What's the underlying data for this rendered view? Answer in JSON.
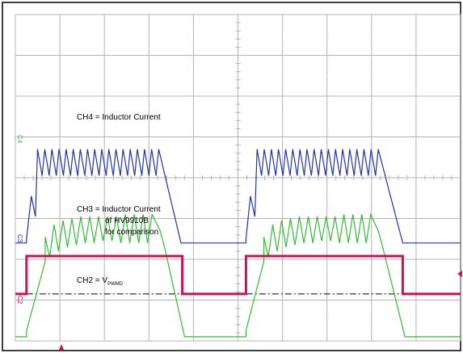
{
  "chart_data": {
    "type": "line",
    "title": "",
    "xlabel": "",
    "ylabel": "",
    "grid": true,
    "grid_divisions": {
      "x": 10,
      "y": 8
    },
    "annotations": {
      "ch4": "CH4 = Inductor Current",
      "ch3_line1": "CH3 = Inductor Current",
      "ch3_line2": "of HV9910B",
      "ch3_line3": "for comparison",
      "ch2_prefix": "CH2 = V",
      "ch2_subscript": "PWMD"
    },
    "channel_markers": {
      "ch4": "C4",
      "ch3": "C3",
      "ch2": "C2"
    },
    "colors": {
      "ch4": "#33bb33",
      "ch3": "#2233aa",
      "ch2": "#cc1155",
      "grid": "#b4b4b4",
      "frame": "#000000",
      "trigger": "#cc1155"
    },
    "series": [
      {
        "channel": "CH4",
        "unit": "div",
        "points": [
          [
            0.0,
            -3.9
          ],
          [
            0.05,
            -3.9
          ],
          [
            0.25,
            -3.9
          ],
          [
            0.25,
            -3.75
          ],
          [
            0.67,
            -2.05
          ],
          [
            0.67,
            -1.45
          ],
          [
            0.77,
            -1.95
          ],
          [
            0.87,
            -1.15
          ],
          [
            0.97,
            -1.8
          ],
          [
            1.07,
            -1.05
          ],
          [
            1.17,
            -1.7
          ],
          [
            1.27,
            -1.0
          ],
          [
            1.37,
            -1.65
          ],
          [
            1.47,
            -0.95
          ],
          [
            1.57,
            -1.6
          ],
          [
            1.67,
            -0.95
          ],
          [
            1.77,
            -1.6
          ],
          [
            1.87,
            -0.95
          ],
          [
            1.97,
            -1.55
          ],
          [
            2.07,
            -0.95
          ],
          [
            2.17,
            -1.55
          ],
          [
            2.27,
            -0.95
          ],
          [
            2.37,
            -1.6
          ],
          [
            2.47,
            -0.9
          ],
          [
            2.57,
            -1.6
          ],
          [
            2.67,
            -0.9
          ],
          [
            2.77,
            -1.6
          ],
          [
            2.87,
            -0.9
          ],
          [
            2.97,
            -1.6
          ],
          [
            3.07,
            -0.9
          ],
          [
            3.25,
            -1.3
          ],
          [
            3.35,
            -1.7
          ],
          [
            3.8,
            -3.9
          ],
          [
            5.18,
            -3.9
          ],
          [
            5.18,
            -3.75
          ],
          [
            5.58,
            -2.05
          ],
          [
            5.58,
            -1.45
          ],
          [
            5.68,
            -1.95
          ],
          [
            5.78,
            -1.15
          ],
          [
            5.88,
            -1.8
          ],
          [
            5.98,
            -1.05
          ],
          [
            6.08,
            -1.7
          ],
          [
            6.18,
            -1.0
          ],
          [
            6.28,
            -1.65
          ],
          [
            6.38,
            -0.95
          ],
          [
            6.48,
            -1.6
          ],
          [
            6.58,
            -0.95
          ],
          [
            6.68,
            -1.6
          ],
          [
            6.78,
            -0.95
          ],
          [
            6.88,
            -1.55
          ],
          [
            6.98,
            -0.95
          ],
          [
            7.08,
            -1.55
          ],
          [
            7.18,
            -0.95
          ],
          [
            7.28,
            -1.6
          ],
          [
            7.38,
            -0.9
          ],
          [
            7.48,
            -1.6
          ],
          [
            7.58,
            -0.9
          ],
          [
            7.68,
            -1.6
          ],
          [
            7.78,
            -0.9
          ],
          [
            7.88,
            -1.6
          ],
          [
            7.98,
            -0.9
          ],
          [
            8.15,
            -1.3
          ],
          [
            8.25,
            -1.7
          ],
          [
            8.75,
            -3.9
          ],
          [
            10.0,
            -3.9
          ]
        ]
      },
      {
        "channel": "CH3",
        "unit": "div",
        "points": [
          [
            0.0,
            -1.6
          ],
          [
            0.1,
            -1.6
          ],
          [
            0.25,
            -1.6
          ],
          [
            0.25,
            -1.5
          ],
          [
            0.36,
            -0.45
          ],
          [
            0.45,
            -0.95
          ],
          [
            0.5,
            0.7
          ],
          [
            0.6,
            0.05
          ],
          [
            0.66,
            0.7
          ],
          [
            0.76,
            0.05
          ],
          [
            0.82,
            0.7
          ],
          [
            0.92,
            0.05
          ],
          [
            0.98,
            0.7
          ],
          [
            1.08,
            0.05
          ],
          [
            1.14,
            0.7
          ],
          [
            1.24,
            0.05
          ],
          [
            1.3,
            0.7
          ],
          [
            1.4,
            0.05
          ],
          [
            1.46,
            0.7
          ],
          [
            1.56,
            0.05
          ],
          [
            1.62,
            0.7
          ],
          [
            1.72,
            0.05
          ],
          [
            1.78,
            0.7
          ],
          [
            1.88,
            0.05
          ],
          [
            1.94,
            0.7
          ],
          [
            2.04,
            0.05
          ],
          [
            2.1,
            0.7
          ],
          [
            2.2,
            0.05
          ],
          [
            2.26,
            0.7
          ],
          [
            2.36,
            0.05
          ],
          [
            2.42,
            0.7
          ],
          [
            2.52,
            0.05
          ],
          [
            2.58,
            0.7
          ],
          [
            2.68,
            0.05
          ],
          [
            2.74,
            0.7
          ],
          [
            2.84,
            0.05
          ],
          [
            2.9,
            0.7
          ],
          [
            3.0,
            0.05
          ],
          [
            3.06,
            0.7
          ],
          [
            3.16,
            0.05
          ],
          [
            3.22,
            0.7
          ],
          [
            3.72,
            -1.6
          ],
          [
            5.18,
            -1.6
          ],
          [
            5.18,
            -1.5
          ],
          [
            5.28,
            -0.45
          ],
          [
            5.38,
            -0.95
          ],
          [
            5.43,
            0.7
          ],
          [
            5.53,
            0.05
          ],
          [
            5.59,
            0.7
          ],
          [
            5.69,
            0.05
          ],
          [
            5.75,
            0.7
          ],
          [
            5.85,
            0.05
          ],
          [
            5.91,
            0.7
          ],
          [
            6.01,
            0.05
          ],
          [
            6.07,
            0.7
          ],
          [
            6.17,
            0.05
          ],
          [
            6.23,
            0.7
          ],
          [
            6.33,
            0.05
          ],
          [
            6.39,
            0.7
          ],
          [
            6.49,
            0.05
          ],
          [
            6.55,
            0.7
          ],
          [
            6.65,
            0.05
          ],
          [
            6.71,
            0.7
          ],
          [
            6.81,
            0.05
          ],
          [
            6.87,
            0.7
          ],
          [
            6.97,
            0.05
          ],
          [
            7.03,
            0.7
          ],
          [
            7.13,
            0.05
          ],
          [
            7.19,
            0.7
          ],
          [
            7.29,
            0.05
          ],
          [
            7.35,
            0.7
          ],
          [
            7.45,
            0.05
          ],
          [
            7.51,
            0.7
          ],
          [
            7.61,
            0.05
          ],
          [
            7.67,
            0.7
          ],
          [
            7.77,
            0.05
          ],
          [
            7.83,
            0.7
          ],
          [
            7.93,
            0.05
          ],
          [
            7.99,
            0.7
          ],
          [
            8.09,
            0.05
          ],
          [
            8.15,
            0.7
          ],
          [
            8.7,
            -1.6
          ],
          [
            10.0,
            -1.6
          ]
        ]
      },
      {
        "channel": "CH2",
        "unit": "div",
        "points": [
          [
            0.0,
            -2.85
          ],
          [
            0.25,
            -2.85
          ],
          [
            0.25,
            -1.92
          ],
          [
            3.75,
            -1.92
          ],
          [
            3.75,
            -2.85
          ],
          [
            5.18,
            -2.85
          ],
          [
            5.18,
            -1.92
          ],
          [
            8.7,
            -1.92
          ],
          [
            8.7,
            -2.85
          ],
          [
            10.0,
            -2.85
          ]
        ]
      }
    ],
    "reference_line": {
      "y": -2.85,
      "style": "dash-dot"
    },
    "xlim": [
      0,
      10
    ],
    "ylim": [
      -4,
      4
    ]
  }
}
